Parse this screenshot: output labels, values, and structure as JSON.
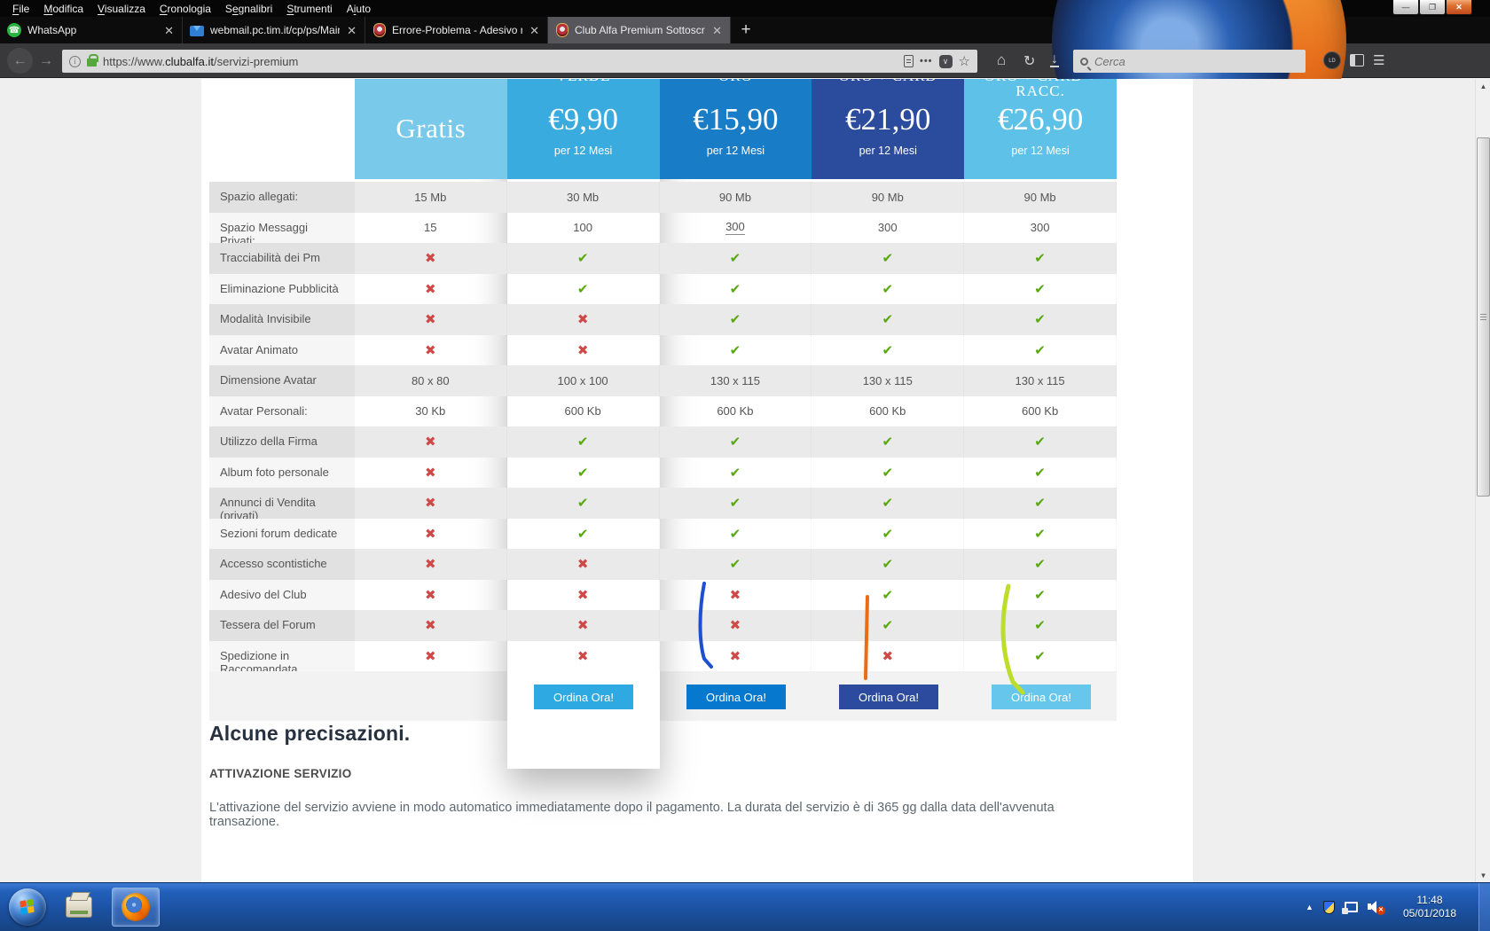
{
  "browser": {
    "menu": [
      {
        "label": "File",
        "key": 0
      },
      {
        "label": "Modifica",
        "key": 0
      },
      {
        "label": "Visualizza",
        "key": 0
      },
      {
        "label": "Cronologia",
        "key": 0
      },
      {
        "label": "Segnalibri",
        "key": 1
      },
      {
        "label": "Strumenti",
        "key": 0
      },
      {
        "label": "Aiuto",
        "key": 1
      }
    ],
    "window_controls": {
      "minimize": "—",
      "restore": "❐",
      "close": "✕"
    },
    "tabs": [
      {
        "id": "whatsapp",
        "title": "WhatsApp",
        "icon": "whatsapp-icon",
        "active": false
      },
      {
        "id": "webmail",
        "title": "webmail.pc.tim.it/cp/ps/Main/",
        "icon": "mail-icon",
        "active": false
      },
      {
        "id": "errore-problema",
        "title": "Errore-Problema - Adesivo rico",
        "icon": "alfa-badge-icon",
        "active": false
      },
      {
        "id": "club-alfa",
        "title": "Club Alfa Premium Sottoscrizi",
        "icon": "alfa-badge-icon",
        "active": true
      }
    ],
    "new_tab_label": "+",
    "close_tab_label": "✕",
    "url": {
      "scheme": "https://www.",
      "domain": "clubalfa.it",
      "path": "/servizi-premium"
    },
    "search_placeholder": "Cerca"
  },
  "pricing": {
    "plans": [
      {
        "id": "gratis",
        "title": "",
        "title2": "",
        "price": "Gratis",
        "period": "",
        "header_color": "#79c9ea",
        "button": null,
        "button_color": null,
        "featured": false
      },
      {
        "id": "verde",
        "title": "VERDE",
        "title2": "",
        "price": "€9,90",
        "period": "per 12 Mesi",
        "header_color": "#3aabdf",
        "button": "Ordina Ora!",
        "button_color": "#2fa9e1",
        "featured": true
      },
      {
        "id": "oro",
        "title": "ORO",
        "title2": "",
        "price": "€15,90",
        "period": "per 12 Mesi",
        "header_color": "#197cc7",
        "button": "Ordina Ora!",
        "button_color": "#0679cf",
        "featured": false
      },
      {
        "id": "oro-card",
        "title": "ORO + CARD",
        "title2": "",
        "price": "€21,90",
        "period": "per 12 Mesi",
        "header_color": "#2b4b9c",
        "button": "Ordina Ora!",
        "button_color": "#2c4b9f",
        "featured": false
      },
      {
        "id": "oro-card-racc",
        "title": "ORO + CARD +",
        "title2": "RACC.",
        "price": "€26,90",
        "period": "per 12 Mesi",
        "header_color": "#5ec2e8",
        "button": "Ordina Ora!",
        "button_color": "#66c6ec",
        "featured": false
      }
    ],
    "rows": [
      {
        "label": "Spazio allegati:",
        "values": [
          "15 Mb",
          "30 Mb",
          "90 Mb",
          "90 Mb",
          "90 Mb"
        ]
      },
      {
        "label": "Spazio Messaggi Privati:",
        "values": [
          "15",
          "100",
          "300",
          "300",
          "300"
        ],
        "underline_col": 2
      },
      {
        "label": "Tracciabilità dei Pm",
        "values": [
          "no",
          "yes",
          "yes",
          "yes",
          "yes"
        ]
      },
      {
        "label": "Eliminazione Pubblicità",
        "values": [
          "no",
          "yes",
          "yes",
          "yes",
          "yes"
        ]
      },
      {
        "label": "Modalità Invisibile",
        "values": [
          "no",
          "no",
          "yes",
          "yes",
          "yes"
        ]
      },
      {
        "label": "Avatar Animato",
        "values": [
          "no",
          "no",
          "yes",
          "yes",
          "yes"
        ]
      },
      {
        "label": "Dimensione Avatar",
        "values": [
          "80 x 80",
          "100 x 100",
          "130 x 115",
          "130 x 115",
          "130 x 115"
        ]
      },
      {
        "label": "Avatar Personali:",
        "values": [
          "30 Kb",
          "600 Kb",
          "600 Kb",
          "600 Kb",
          "600 Kb"
        ]
      },
      {
        "label": "Utilizzo della Firma",
        "values": [
          "no",
          "yes",
          "yes",
          "yes",
          "yes"
        ]
      },
      {
        "label": "Album foto personale",
        "values": [
          "no",
          "yes",
          "yes",
          "yes",
          "yes"
        ]
      },
      {
        "label": "Annunci di Vendita (privati)",
        "values": [
          "no",
          "yes",
          "yes",
          "yes",
          "yes"
        ]
      },
      {
        "label": "Sezioni forum dedicate",
        "values": [
          "no",
          "yes",
          "yes",
          "yes",
          "yes"
        ]
      },
      {
        "label": "Accesso scontistiche",
        "values": [
          "no",
          "no",
          "yes",
          "yes",
          "yes"
        ]
      },
      {
        "label": "Adesivo del Club",
        "values": [
          "no",
          "no",
          "no",
          "yes",
          "yes"
        ]
      },
      {
        "label": "Tessera del Forum",
        "values": [
          "no",
          "no",
          "no",
          "yes",
          "yes"
        ]
      },
      {
        "label": "Spedizione in Raccomandata Certificata",
        "values": [
          "no",
          "no",
          "no",
          "no",
          "yes"
        ]
      }
    ],
    "check_color": "#59a80f",
    "cross_color": "#cf4947"
  },
  "article": {
    "heading": "Alcune precisazioni.",
    "subheading": "ATTIVAZIONE SERVIZIO",
    "paragraph": "L'attivazione del servizio avviene in modo automatico immediatamente dopo il pagamento. La durata del servizio è di 365 gg dalla data dell'avvenuta transazione."
  },
  "annotations": [
    {
      "name": "blue-stroke",
      "color": "#1d4fd0"
    },
    {
      "name": "orange-stroke",
      "color": "#ea6d15"
    },
    {
      "name": "green-stroke",
      "color": "#bddd2b"
    }
  ],
  "taskbar": {
    "time": "11:48",
    "date": "05/01/2018"
  }
}
